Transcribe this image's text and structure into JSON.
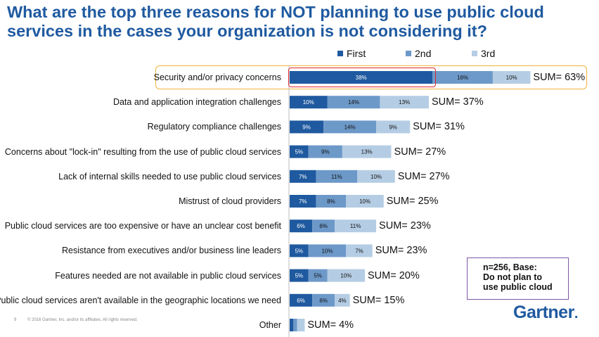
{
  "title": "What are the top three reasons for NOT planning to use public cloud services in the cases your organization is not considering it?",
  "colors": {
    "first": "#1f5aa0",
    "second": "#6d99c9",
    "third": "#b5cde4",
    "title": "#1f5aa0",
    "highlight": "#f0b43a",
    "top_outline": "#e0262b",
    "note_border": "#7e56a8"
  },
  "note": {
    "line1": "n=256, Base:",
    "line2": "Do not plan to",
    "line3": "use public cloud"
  },
  "logo": {
    "text": "Gartner",
    "dot": "."
  },
  "footer": {
    "page": "9",
    "copyright": "© 2016 Gartner, Inc. and/or its affiliates. All rights reserved."
  },
  "chart_data": {
    "type": "bar",
    "orientation": "horizontal",
    "stacked": true,
    "title": "What are the top three reasons for NOT planning to use public cloud services in the cases your organization is not considering it?",
    "unit": "%",
    "legend": [
      "First",
      "2nd",
      "3rd"
    ],
    "legend_position": "top",
    "categories": [
      "Security and/or privacy concerns",
      "Data and application integration challenges",
      "Regulatory compliance challenges",
      "Concerns about \"lock-in\" resulting from the use of public cloud services",
      "Lack of internal skills needed to use public cloud services",
      "Mistrust of cloud providers",
      "Public cloud services are too expensive or have an unclear cost benefit",
      "Resistance from executives and/or business line leaders",
      "Features needed are not available in public cloud services",
      "Public cloud services aren't available in the geographic locations we need",
      "Other"
    ],
    "series": [
      {
        "name": "First",
        "values": [
          38,
          10,
          9,
          5,
          7,
          7,
          6,
          5,
          5,
          6,
          1
        ],
        "labels": [
          "38%",
          "10%",
          "9%",
          "5%",
          "7%",
          "7%",
          "6%",
          "5%",
          "5%",
          "6%",
          ""
        ]
      },
      {
        "name": "2nd",
        "values": [
          16,
          14,
          14,
          9,
          11,
          8,
          6,
          10,
          5,
          6,
          1
        ],
        "labels": [
          "16%",
          "14%",
          "14%",
          "9%",
          "11%",
          "8%",
          "6%",
          "10%",
          "5%",
          "6%",
          ""
        ]
      },
      {
        "name": "3rd",
        "values": [
          10,
          13,
          9,
          13,
          10,
          10,
          11,
          7,
          10,
          4,
          2
        ],
        "labels": [
          "10%",
          "13%",
          "9%",
          "13%",
          "10%",
          "10%",
          "11%",
          "7%",
          "10%",
          "4%",
          ""
        ]
      }
    ],
    "sum_labels": [
      "SUM= 63%",
      "SUM= 37%",
      "SUM= 31%",
      "SUM= 27%",
      "SUM= 27%",
      "SUM= 25%",
      "SUM= 23%",
      "SUM= 23%",
      "SUM= 20%",
      "SUM= 15%",
      "SUM= 4%"
    ],
    "highlighted_category": "Security and/or privacy concerns"
  }
}
